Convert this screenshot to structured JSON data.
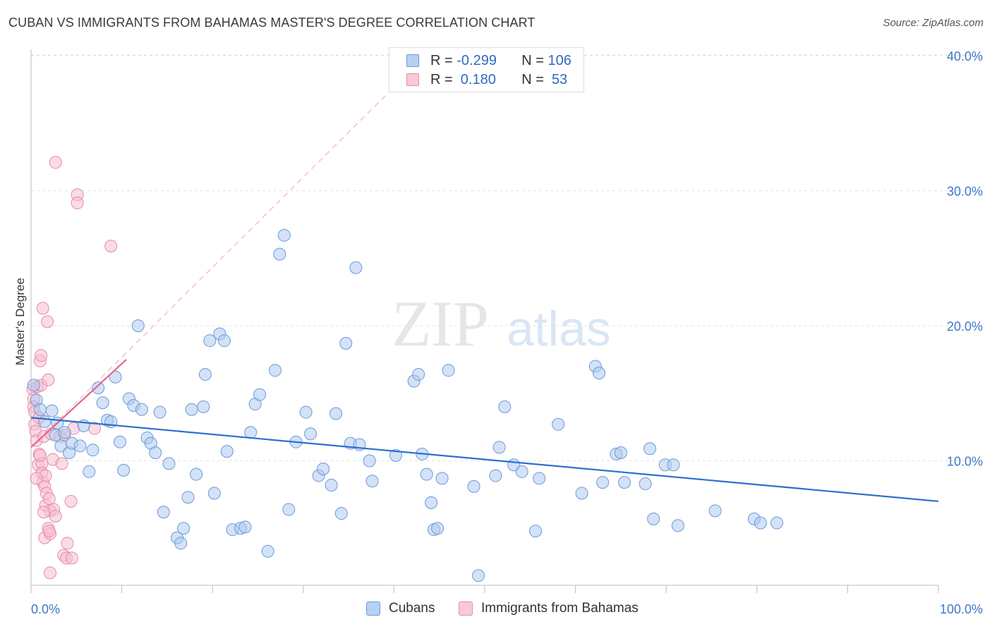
{
  "title": "CUBAN VS IMMIGRANTS FROM BAHAMAS MASTER'S DEGREE CORRELATION CHART",
  "source": "Source: ZipAtlas.com",
  "watermark": {
    "zip": "ZIP",
    "atlas": "atlas"
  },
  "colors": {
    "blue_fill": "#aecbf1",
    "blue_stroke": "#6a9ad8",
    "blue_line": "#2c6fce",
    "pink_fill": "#f6bfd0",
    "pink_stroke": "#e88aa8",
    "pink_line": "#e0668f",
    "axis_text": "#3f77c9",
    "grid": "#e3e3e3"
  },
  "legend": {
    "rows": [
      {
        "r_label": "R = ",
        "r_value": "-0.299",
        "n_label": "N = ",
        "n_value": "106"
      },
      {
        "r_label": "R = ",
        "r_value": " 0.180",
        "n_label": "N = ",
        "n_value": " 53"
      }
    ]
  },
  "bottom_legend": {
    "cubans": "Cubans",
    "bahamas": "Immigrants from Bahamas"
  },
  "chart_data": {
    "type": "scatter",
    "title": "CUBAN VS IMMIGRANTS FROM BAHAMAS MASTER'S DEGREE CORRELATION CHART",
    "xlabel": "",
    "ylabel": "Master's Degree",
    "xlim": [
      0,
      100
    ],
    "ylim": [
      0,
      40
    ],
    "x_tick_labels": [
      "0.0%",
      "100.0%"
    ],
    "y_ticks": [
      10,
      20,
      30,
      40
    ],
    "y_tick_labels": [
      "10.0%",
      "20.0%",
      "30.0%",
      "40.0%"
    ],
    "grid": true,
    "legend_position": "top-center",
    "series": [
      {
        "name": "Cubans",
        "r": -0.299,
        "n": 106,
        "trend": {
          "x": [
            0,
            100
          ],
          "y": [
            13.2,
            7.0
          ]
        },
        "points": [
          [
            0.3,
            15.6
          ],
          [
            0.6,
            14.5
          ],
          [
            1.0,
            13.8
          ],
          [
            1.5,
            12.9
          ],
          [
            2.3,
            13.7
          ],
          [
            2.7,
            11.9
          ],
          [
            2.9,
            12.8
          ],
          [
            3.3,
            11.1
          ],
          [
            3.7,
            12.1
          ],
          [
            4.2,
            10.6
          ],
          [
            4.5,
            11.3
          ],
          [
            5.4,
            11.1
          ],
          [
            5.8,
            12.6
          ],
          [
            6.4,
            9.2
          ],
          [
            6.8,
            10.8
          ],
          [
            7.4,
            15.4
          ],
          [
            7.9,
            14.3
          ],
          [
            8.4,
            13.0
          ],
          [
            8.8,
            12.9
          ],
          [
            9.3,
            16.2
          ],
          [
            9.8,
            11.4
          ],
          [
            10.2,
            9.3
          ],
          [
            10.8,
            14.6
          ],
          [
            11.3,
            14.1
          ],
          [
            11.8,
            20.0
          ],
          [
            12.2,
            13.8
          ],
          [
            12.8,
            11.7
          ],
          [
            13.2,
            11.3
          ],
          [
            13.7,
            10.6
          ],
          [
            14.2,
            13.6
          ],
          [
            14.6,
            6.2
          ],
          [
            15.2,
            9.8
          ],
          [
            16.1,
            4.3
          ],
          [
            16.5,
            3.9
          ],
          [
            16.8,
            5.0
          ],
          [
            17.3,
            7.3
          ],
          [
            17.7,
            13.8
          ],
          [
            18.2,
            9.0
          ],
          [
            19.0,
            14.0
          ],
          [
            19.2,
            16.4
          ],
          [
            19.7,
            18.9
          ],
          [
            20.2,
            7.6
          ],
          [
            20.8,
            19.4
          ],
          [
            21.3,
            18.9
          ],
          [
            21.6,
            10.7
          ],
          [
            22.2,
            4.9
          ],
          [
            23.1,
            5.0
          ],
          [
            23.6,
            5.1
          ],
          [
            24.2,
            12.1
          ],
          [
            24.7,
            14.2
          ],
          [
            25.2,
            14.9
          ],
          [
            26.1,
            3.3
          ],
          [
            26.9,
            16.7
          ],
          [
            27.4,
            25.3
          ],
          [
            27.9,
            26.7
          ],
          [
            28.4,
            6.4
          ],
          [
            29.2,
            11.4
          ],
          [
            30.3,
            13.6
          ],
          [
            30.8,
            12.0
          ],
          [
            31.7,
            8.9
          ],
          [
            32.2,
            9.4
          ],
          [
            33.1,
            8.2
          ],
          [
            33.6,
            13.5
          ],
          [
            34.2,
            6.1
          ],
          [
            34.7,
            18.7
          ],
          [
            35.2,
            11.3
          ],
          [
            35.8,
            24.3
          ],
          [
            36.2,
            11.2
          ],
          [
            37.3,
            10.0
          ],
          [
            37.6,
            8.5
          ],
          [
            40.2,
            10.4
          ],
          [
            42.2,
            15.9
          ],
          [
            42.7,
            16.4
          ],
          [
            43.1,
            10.5
          ],
          [
            43.6,
            9.0
          ],
          [
            44.1,
            6.9
          ],
          [
            44.4,
            4.9
          ],
          [
            44.8,
            5.0
          ],
          [
            45.3,
            8.7
          ],
          [
            46.0,
            16.7
          ],
          [
            48.8,
            8.1
          ],
          [
            49.3,
            1.5
          ],
          [
            51.2,
            8.9
          ],
          [
            51.6,
            11.0
          ],
          [
            52.2,
            14.0
          ],
          [
            53.2,
            9.7
          ],
          [
            54.1,
            9.2
          ],
          [
            55.6,
            4.8
          ],
          [
            56.0,
            8.7
          ],
          [
            58.1,
            12.7
          ],
          [
            60.7,
            7.6
          ],
          [
            62.2,
            17.0
          ],
          [
            62.6,
            16.5
          ],
          [
            63.0,
            8.4
          ],
          [
            64.5,
            10.5
          ],
          [
            65.0,
            10.6
          ],
          [
            65.4,
            8.4
          ],
          [
            67.7,
            8.3
          ],
          [
            68.2,
            10.9
          ],
          [
            68.6,
            5.7
          ],
          [
            69.9,
            9.7
          ],
          [
            70.8,
            9.7
          ],
          [
            71.3,
            5.2
          ],
          [
            75.4,
            6.3
          ],
          [
            79.7,
            5.7
          ],
          [
            80.4,
            5.4
          ],
          [
            82.2,
            5.4
          ]
        ]
      },
      {
        "name": "Immigrants from Bahamas",
        "r": 0.18,
        "n": 53,
        "trend": {
          "x": [
            0,
            10.5
          ],
          "y": [
            11.0,
            17.5
          ]
        },
        "trend_extended": {
          "x": [
            0,
            40.5
          ],
          "y": [
            11.0,
            38.0
          ]
        },
        "points": [
          [
            0.2,
            15.3
          ],
          [
            0.3,
            14.6
          ],
          [
            0.3,
            14.0
          ],
          [
            0.4,
            13.6
          ],
          [
            0.4,
            12.7
          ],
          [
            0.5,
            12.2
          ],
          [
            0.6,
            11.5
          ],
          [
            0.7,
            15.5
          ],
          [
            0.8,
            9.7
          ],
          [
            0.9,
            13.2
          ],
          [
            0.9,
            10.5
          ],
          [
            1.0,
            17.4
          ],
          [
            1.1,
            17.8
          ],
          [
            1.1,
            15.6
          ],
          [
            1.2,
            9.8
          ],
          [
            1.2,
            9.1
          ],
          [
            1.3,
            21.3
          ],
          [
            1.3,
            8.4
          ],
          [
            1.4,
            11.8
          ],
          [
            1.5,
            8.1
          ],
          [
            1.5,
            4.3
          ],
          [
            1.6,
            8.9
          ],
          [
            1.6,
            6.7
          ],
          [
            1.7,
            7.6
          ],
          [
            1.8,
            20.3
          ],
          [
            1.9,
            16.0
          ],
          [
            1.9,
            5.0
          ],
          [
            2.0,
            7.2
          ],
          [
            2.1,
            1.7
          ],
          [
            2.1,
            6.3
          ],
          [
            2.1,
            4.6
          ],
          [
            2.2,
            12.0
          ],
          [
            2.4,
            10.1
          ],
          [
            2.5,
            6.4
          ],
          [
            2.7,
            32.1
          ],
          [
            2.7,
            5.9
          ],
          [
            3.2,
            11.8
          ],
          [
            3.4,
            9.8
          ],
          [
            3.6,
            3.0
          ],
          [
            3.7,
            11.9
          ],
          [
            3.9,
            2.8
          ],
          [
            4.0,
            3.9
          ],
          [
            4.4,
            7.0
          ],
          [
            4.5,
            2.8
          ],
          [
            4.7,
            12.4
          ],
          [
            5.1,
            29.7
          ],
          [
            5.1,
            29.1
          ],
          [
            7.0,
            12.4
          ],
          [
            8.8,
            25.9
          ],
          [
            1.0,
            10.4
          ],
          [
            0.6,
            8.7
          ],
          [
            2.0,
            4.8
          ],
          [
            1.4,
            6.2
          ]
        ]
      }
    ]
  }
}
